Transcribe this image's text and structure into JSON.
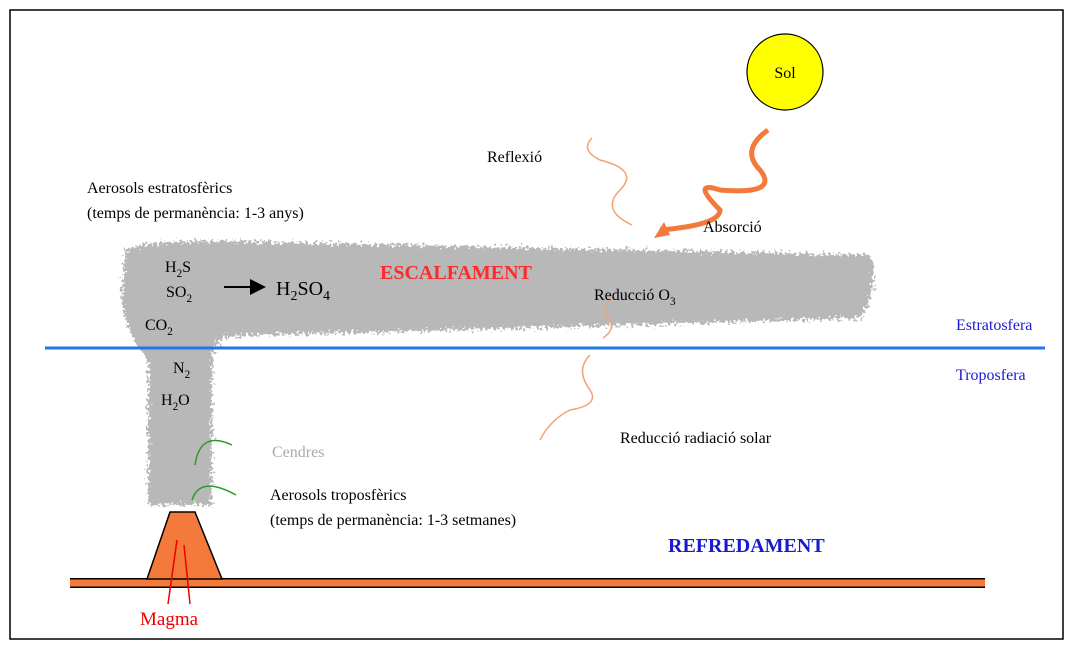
{
  "sun": "Sol",
  "reflection": "Reflexió",
  "absorption": "Absorció",
  "stratospheric_aerosols": {
    "title": "Aerosols estratosfèrics",
    "residence": "(temps de permanència: 1-3 anys)"
  },
  "gases": {
    "h2s": "H2S",
    "so2": "SO2",
    "h2so4": "H2SO4",
    "co2": "CO2",
    "n2": "N2",
    "h2o": "H2O"
  },
  "warming": "ESCALFAMENT",
  "ozone_reduction": "Reducció O3",
  "layers": {
    "stratosphere": "Estratosfera",
    "troposphere": "Troposfera"
  },
  "radiation_reduction": "Reducció radiació solar",
  "ash": "Cendres",
  "tropospheric_aerosols": {
    "title": "Aerosols troposfèrics",
    "residence": "(temps de permanència: 1-3 setmanes)"
  },
  "cooling": "REFREDAMENT",
  "magma": "Magma"
}
